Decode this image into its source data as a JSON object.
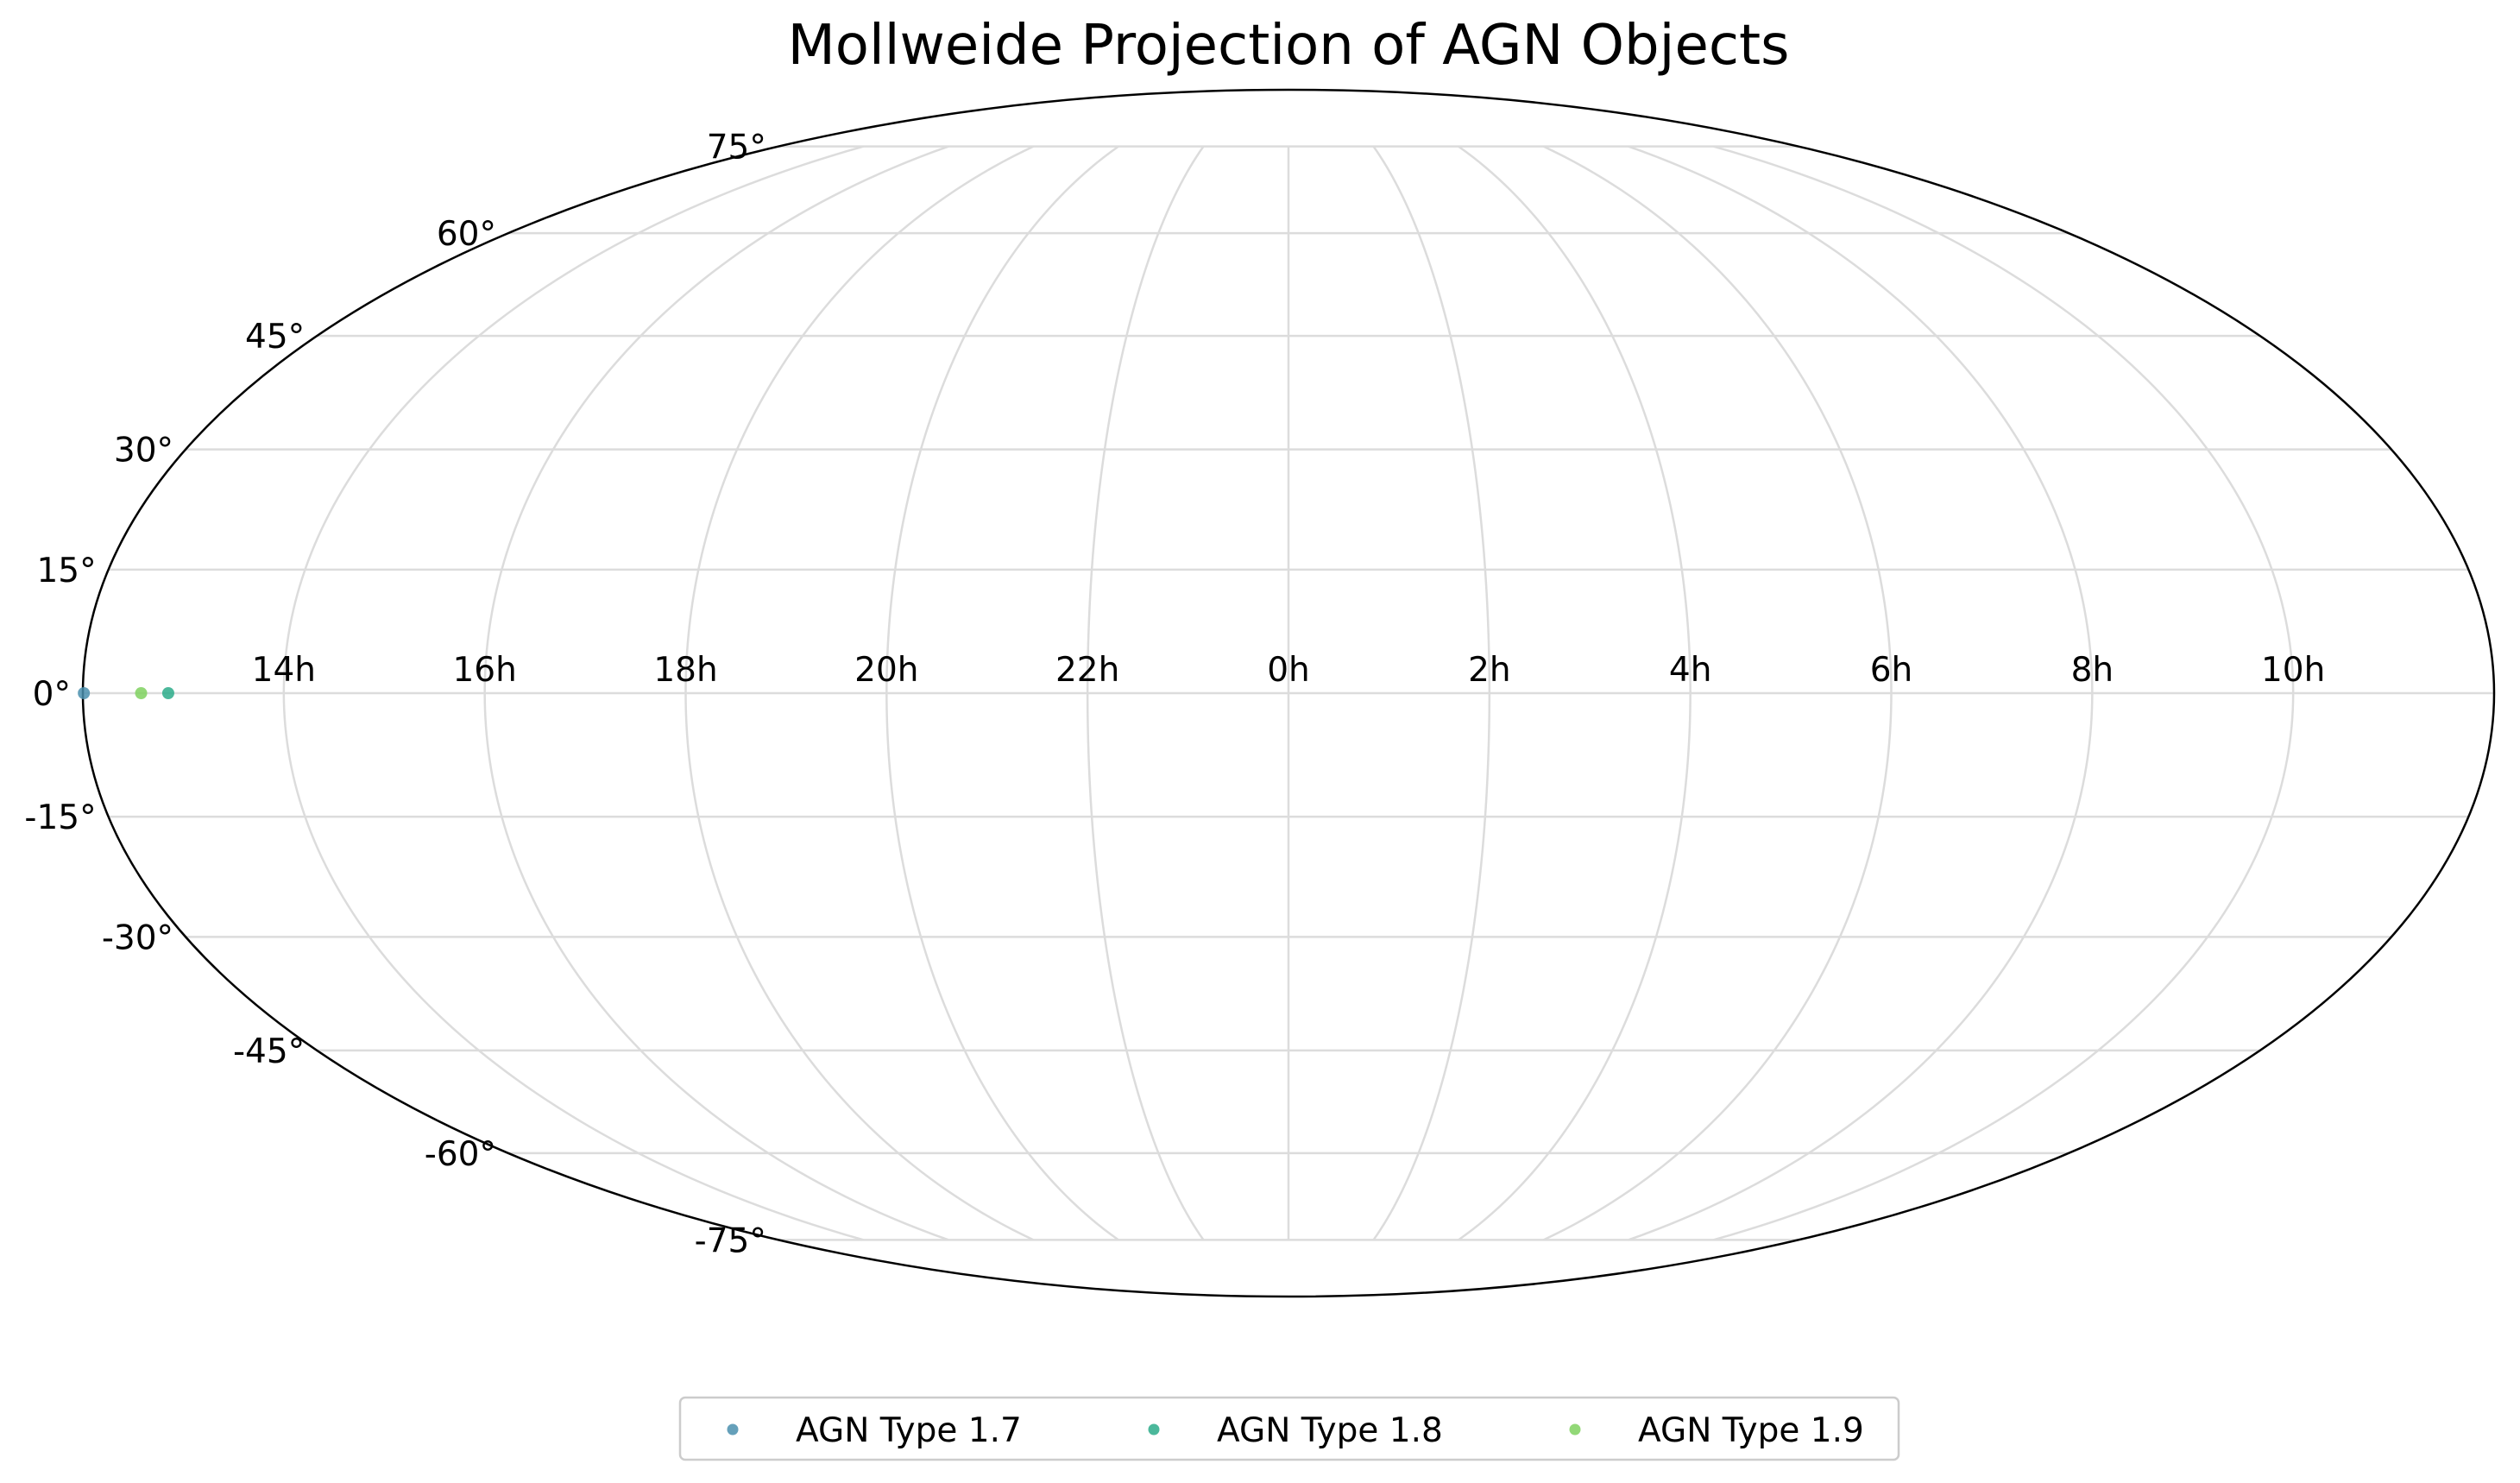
{
  "chart_data": {
    "type": "scatter",
    "projection": "mollweide",
    "title": "Mollweide Projection of AGN Objects",
    "x_tick_labels": [
      "14h",
      "16h",
      "18h",
      "20h",
      "22h",
      "0h",
      "2h",
      "4h",
      "6h",
      "8h",
      "10h"
    ],
    "x_tick_values_hours": [
      14,
      16,
      18,
      20,
      22,
      0,
      2,
      4,
      6,
      8,
      10
    ],
    "y_tick_labels": [
      "75°",
      "60°",
      "45°",
      "30°",
      "15°",
      "0°",
      "-15°",
      "-30°",
      "-45°",
      "-60°",
      "-75°"
    ],
    "y_tick_values_deg": [
      75,
      60,
      45,
      30,
      15,
      0,
      -15,
      -30,
      -45,
      -60,
      -75
    ],
    "grid": true,
    "legend_position": "bottom-center",
    "series": [
      {
        "name": "AGN Type 1.7",
        "color": "#4a8fae",
        "points": [
          {
            "ra_hours": 12.01,
            "dec_deg": 0.0
          }
        ]
      },
      {
        "name": "AGN Type 1.8",
        "color": "#2bac8a",
        "points": [
          {
            "ra_hours": 12.85,
            "dec_deg": 0.0
          }
        ]
      },
      {
        "name": "AGN Type 1.9",
        "color": "#7fd15f",
        "points": [
          {
            "ra_hours": 12.58,
            "dec_deg": 0.0
          }
        ]
      }
    ]
  }
}
